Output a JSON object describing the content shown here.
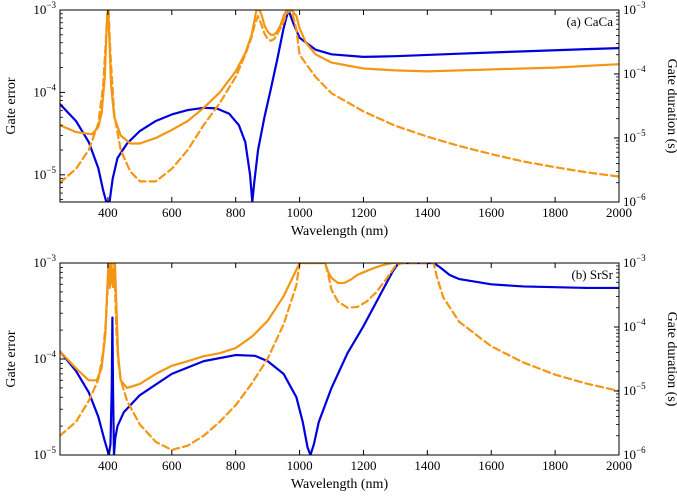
{
  "chart_data": [
    {
      "type": "line",
      "title": "(a) CaCa",
      "xlabel": "Wavelength (nm)",
      "ylabel": "Gate error",
      "y2label": "Gate duration (s)",
      "xlim": [
        250,
        2000
      ],
      "ylim_log10": [
        -5.33,
        -3
      ],
      "y2lim_log10": [
        -6,
        -3
      ],
      "xticks": [
        400,
        600,
        800,
        1000,
        1200,
        1400,
        1600,
        1800,
        2000
      ],
      "yticks": [
        {
          "base": "10",
          "exp": "−5"
        },
        {
          "base": "10",
          "exp": "−4"
        },
        {
          "base": "10",
          "exp": "−3"
        }
      ],
      "y2ticks": [
        {
          "base": "10",
          "exp": "−6"
        },
        {
          "base": "10",
          "exp": "−5"
        },
        {
          "base": "10",
          "exp": "−4"
        },
        {
          "base": "10",
          "exp": "−3"
        }
      ],
      "series": [
        {
          "name": "blue",
          "color": "#0000dd",
          "dashed": false,
          "axis": "left",
          "x": [
            250,
            300,
            340,
            370,
            385,
            395,
            400,
            405,
            415,
            430,
            460,
            500,
            550,
            600,
            650,
            700,
            740,
            780,
            810,
            830,
            845,
            852,
            858,
            870,
            890,
            910,
            930,
            950,
            965,
            980,
            1000,
            1050,
            1100,
            1200,
            1300,
            1400,
            1500,
            1600,
            1700,
            1800,
            1900,
            2000
          ],
          "y": [
            7.2e-05,
            4.5e-05,
            2.5e-05,
            1.2e-05,
            6.5e-06,
            4.5e-06,
            4e-06,
            4.5e-06,
            9e-06,
            1.6e-05,
            2.4e-05,
            3.4e-05,
            4.5e-05,
            5.4e-05,
            6.1e-05,
            6.5e-05,
            6.4e-05,
            5.5e-05,
            4e-05,
            2.5e-05,
            1e-05,
            4.5e-06,
            8e-06,
            2e-05,
            5e-05,
            0.00011,
            0.00025,
            0.0006,
            0.001,
            0.0007,
            0.00046,
            0.00033,
            0.00029,
            0.00027,
            0.000275,
            0.000285,
            0.000295,
            0.000305,
            0.000315,
            0.000325,
            0.000335,
            0.000345
          ]
        },
        {
          "name": "orange-solid",
          "color": "#f49614",
          "dashed": false,
          "axis": "left",
          "x": [
            250,
            300,
            350,
            370,
            380,
            390,
            396,
            400,
            404,
            410,
            420,
            440,
            470,
            500,
            550,
            600,
            650,
            700,
            750,
            800,
            830,
            850,
            865,
            875,
            882,
            890,
            900,
            910,
            920,
            930,
            940,
            950,
            960,
            975,
            990,
            1000,
            1020,
            1050,
            1100,
            1200,
            1300,
            1400,
            1500,
            1600,
            1700,
            1800,
            1900,
            2000
          ],
          "y": [
            4e-05,
            3.3e-05,
            3.1e-05,
            3.8e-05,
            5.5e-05,
            0.00015,
            0.0006,
            0.001,
            0.0005,
            0.00012,
            5e-05,
            3e-05,
            2.4e-05,
            2.4e-05,
            2.8e-05,
            3.5e-05,
            4.5e-05,
            6.5e-05,
            0.0001,
            0.00018,
            0.0003,
            0.0005,
            0.001,
            0.001,
            0.00085,
            0.00065,
            0.00055,
            0.0005,
            0.0005,
            0.00055,
            0.00065,
            0.00085,
            0.001,
            0.001,
            0.00085,
            0.0006,
            0.0004,
            0.00029,
            0.00023,
            0.000195,
            0.000185,
            0.00018,
            0.000185,
            0.00019,
            0.000195,
            0.0002,
            0.00021,
            0.00022
          ]
        },
        {
          "name": "orange-dashed",
          "color": "#f49614",
          "dashed": true,
          "axis": "right",
          "x": [
            250,
            300,
            340,
            370,
            385,
            393,
            398,
            402,
            408,
            420,
            440,
            470,
            500,
            550,
            600,
            650,
            700,
            750,
            800,
            830,
            850,
            860,
            870,
            880,
            890,
            900,
            910,
            920,
            930,
            940,
            950,
            960,
            975,
            990,
            1000,
            1050,
            1100,
            1200,
            1300,
            1400,
            1500,
            1600,
            1700,
            1800,
            1900,
            2000
          ],
          "y": [
            2e-06,
            3.3e-06,
            6.5e-06,
            1.7e-05,
            6.5e-05,
            0.0003,
            0.0009,
            0.001,
            0.0002,
            2.3e-05,
            6.5e-06,
            3e-06,
            2.1e-06,
            2.1e-06,
            3.3e-06,
            6.5e-06,
            1.6e-05,
            3.5e-05,
            9e-05,
            0.0002,
            0.00038,
            0.0006,
            0.0008,
            0.0006,
            0.00043,
            0.00035,
            0.00033,
            0.00035,
            0.00042,
            0.00052,
            0.00065,
            0.0009,
            0.001,
            0.0005,
            0.0002,
            9e-05,
            5e-05,
            2.6e-05,
            1.55e-05,
            1.05e-05,
            7.5e-06,
            5.6e-06,
            4.3e-06,
            3.5e-06,
            2.9e-06,
            2.5e-06
          ]
        }
      ]
    },
    {
      "type": "line",
      "title": "(b) SrSr",
      "xlabel": "Wavelength (nm)",
      "ylabel": "Gate error",
      "y2label": "Gate duration (s)",
      "xlim": [
        250,
        2000
      ],
      "ylim_log10": [
        -5,
        -3
      ],
      "y2lim_log10": [
        -6,
        -3
      ],
      "xticks": [
        400,
        600,
        800,
        1000,
        1200,
        1400,
        1600,
        1800,
        2000
      ],
      "yticks": [
        {
          "base": "10",
          "exp": "−5"
        },
        {
          "base": "10",
          "exp": "−4"
        },
        {
          "base": "10",
          "exp": "−3"
        }
      ],
      "y2ticks": [
        {
          "base": "10",
          "exp": "−6"
        },
        {
          "base": "10",
          "exp": "−5"
        },
        {
          "base": "10",
          "exp": "−4"
        },
        {
          "base": "10",
          "exp": "−3"
        }
      ],
      "series": [
        {
          "name": "blue",
          "color": "#0000dd",
          "dashed": false,
          "axis": "left",
          "x": [
            250,
            300,
            340,
            370,
            390,
            403,
            408,
            412,
            414,
            416,
            419,
            423,
            430,
            450,
            500,
            600,
            700,
            800,
            860,
            900,
            950,
            990,
            1010,
            1025,
            1034,
            1045,
            1060,
            1100,
            1150,
            1200,
            1250,
            1290,
            1310,
            1320,
            1380,
            1420,
            1440,
            1470,
            1500,
            1600,
            1700,
            1800,
            1900,
            2000
          ],
          "y": [
            0.00012,
            7.5e-05,
            4.5e-05,
            2.5e-05,
            1.4e-05,
            1e-05,
            1.3e-05,
            5e-05,
            0.00027,
            5e-05,
            1e-05,
            1.5e-05,
            2e-05,
            2.8e-05,
            4.2e-05,
            7e-05,
            9.5e-05,
            0.00011,
            0.000108,
            9.5e-05,
            7e-05,
            4e-05,
            2.2e-05,
            1.2e-05,
            1e-05,
            1.3e-05,
            2.2e-05,
            5e-05,
            0.000115,
            0.00022,
            0.00045,
            0.0008,
            0.001,
            0.001,
            0.001,
            0.001,
            0.0009,
            0.00075,
            0.00068,
            0.0006,
            0.00057,
            0.00056,
            0.00055,
            0.00055
          ]
        },
        {
          "name": "orange-solid",
          "color": "#f49614",
          "dashed": false,
          "axis": "left",
          "x": [
            250,
            300,
            340,
            365,
            380,
            392,
            398,
            402,
            406,
            410,
            414,
            418,
            422,
            426,
            432,
            440,
            460,
            500,
            550,
            600,
            650,
            700,
            750,
            800,
            850,
            900,
            950,
            990,
            1000,
            1080,
            1090,
            1100,
            1120,
            1140,
            1160,
            1180,
            1200,
            1230,
            1260,
            1290,
            1310,
            1320
          ],
          "y": [
            0.00012,
            8e-05,
            6e-05,
            6e-05,
            8e-05,
            0.00018,
            0.00055,
            0.001,
            0.00055,
            0.001,
            0.0006,
            0.0007,
            0.001,
            0.0004,
            0.00011,
            6e-05,
            5e-05,
            5.5e-05,
            7e-05,
            8.5e-05,
            9.5e-05,
            0.000107,
            0.000115,
            0.00013,
            0.00017,
            0.00025,
            0.00045,
            0.00085,
            0.001,
            0.001,
            0.0008,
            0.0007,
            0.00062,
            0.00062,
            0.00067,
            0.00075,
            0.0008,
            0.00088,
            0.00095,
            0.001,
            0.001,
            0.001
          ]
        },
        {
          "name": "orange-dashed",
          "color": "#f49614",
          "dashed": true,
          "axis": "right",
          "x": [
            250,
            300,
            340,
            370,
            385,
            395,
            400,
            404,
            408,
            412,
            416,
            420,
            426,
            432,
            440,
            460,
            500,
            550,
            600,
            650,
            700,
            750,
            800,
            850,
            900,
            950,
            990,
            1000,
            1080,
            1090,
            1100,
            1120,
            1150,
            1180,
            1210,
            1240,
            1270,
            1300,
            1320,
            1420,
            1430,
            1450,
            1500,
            1600,
            1700,
            1800,
            1900,
            2000
          ],
          "y": [
            2e-06,
            3.3e-06,
            7e-06,
            1.5e-05,
            4e-05,
            0.00015,
            0.0005,
            0.001,
            0.0005,
            0.001,
            0.0004,
            0.001,
            0.0001,
            3e-05,
            1.5e-05,
            7e-06,
            3e-06,
            1.6e-06,
            1.2e-06,
            1.4e-06,
            2e-06,
            3.3e-06,
            6e-06,
            1.3e-05,
            3.2e-05,
            0.00011,
            0.00045,
            0.001,
            0.001,
            0.00065,
            0.00038,
            0.00025,
            0.0002,
            0.000205,
            0.00025,
            0.00035,
            0.00055,
            0.0009,
            0.001,
            0.001,
            0.0006,
            0.00029,
            0.00012,
            5e-05,
            2.8e-05,
            1.8e-05,
            1.3e-05,
            1e-05
          ]
        }
      ]
    }
  ]
}
